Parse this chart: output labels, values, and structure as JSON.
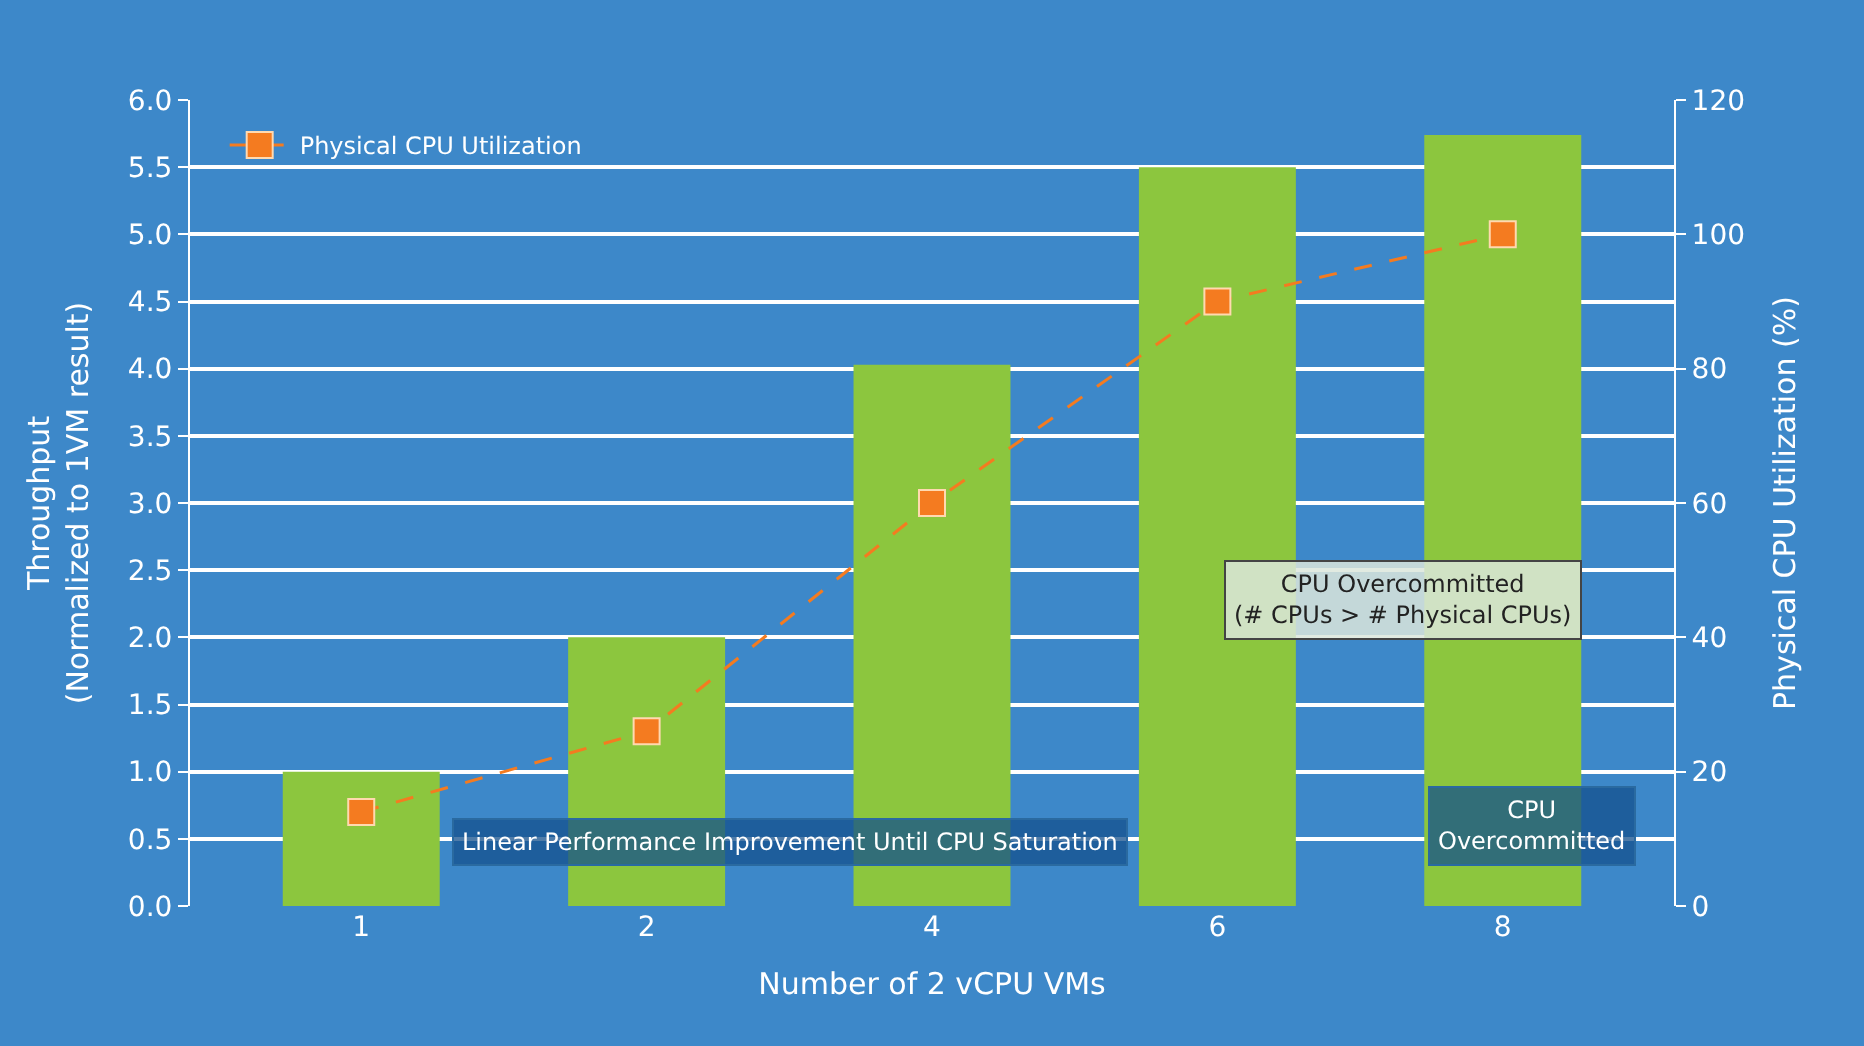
{
  "chart_data": {
    "type": "bar",
    "xlabel": "Number of 2 vCPU VMs",
    "ylabel": "Throughput\n(Normalized to 1VM result)",
    "y2label": "Physical CPU Utilization (%)",
    "categories": [
      "1",
      "2",
      "4",
      "6",
      "8"
    ],
    "series": [
      {
        "color": "#8cc63e",
        "values": [
          1.0,
          2.0,
          4.03,
          5.5,
          5.74
        ]
      },
      {
        "name": "Physical CPU Utilization",
        "type": "line",
        "axis": "y2",
        "color": "#f47b20",
        "marker": "square",
        "line_style": "dashed",
        "values": [
          14,
          26,
          60,
          90,
          100
        ]
      }
    ],
    "ylim": [
      0,
      6
    ],
    "yticks": [
      {
        "value": 0,
        "label": "0.0"
      },
      {
        "value": 0.5,
        "label": "0.5"
      },
      {
        "value": 1,
        "label": "1.0"
      },
      {
        "value": 1.5,
        "label": "1.5"
      },
      {
        "value": 2,
        "label": "2.0"
      },
      {
        "value": 2.5,
        "label": "2.5"
      },
      {
        "value": 3,
        "label": "3.0"
      },
      {
        "value": 3.5,
        "label": "3.5"
      },
      {
        "value": 4,
        "label": "4.0"
      },
      {
        "value": 4.5,
        "label": "4.5"
      },
      {
        "value": 5,
        "label": "5.0"
      },
      {
        "value": 5.5,
        "label": "5.5"
      },
      {
        "value": 6,
        "label": "6.0"
      }
    ],
    "y2lim": [
      0,
      120
    ],
    "y2ticks": [
      0,
      20,
      40,
      60,
      80,
      100,
      120
    ],
    "grid": "y",
    "legend": "top left",
    "annotations": [
      "CPU Overcommitted\n(# CPUs > # Physical CPUs)",
      "Linear Performance Improvement Until CPU Saturation",
      "CPU\nOvercommitted"
    ]
  }
}
